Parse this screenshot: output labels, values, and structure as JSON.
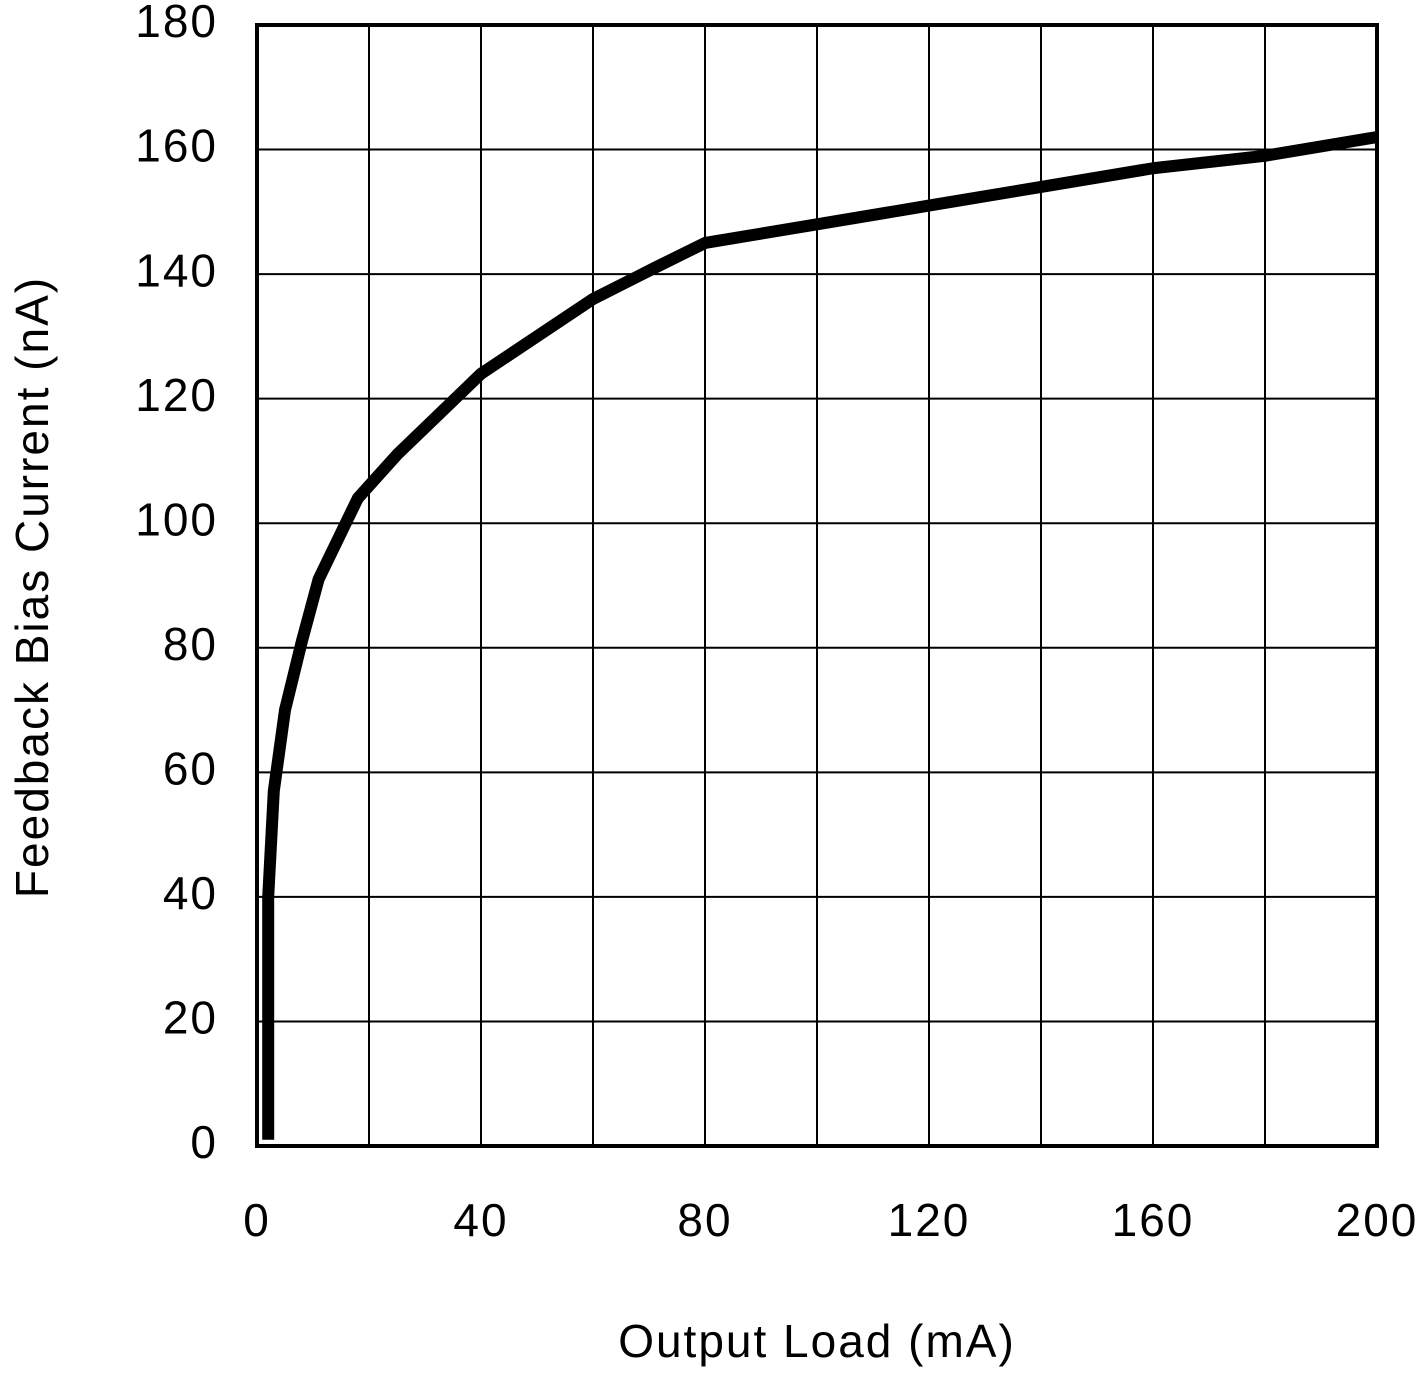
{
  "chart_data": {
    "type": "line",
    "x_label": "Output Load (mA)",
    "y_label": "Feedback Bias Current (nA)",
    "xlim": [
      0,
      200
    ],
    "ylim": [
      0,
      180
    ],
    "xticks": [
      0,
      40,
      80,
      120,
      160,
      200
    ],
    "x_minor_grid": [
      20,
      60,
      100,
      140,
      180
    ],
    "yticks": [
      0,
      20,
      40,
      60,
      80,
      100,
      120,
      140,
      160,
      180
    ],
    "grid": true,
    "series": [
      {
        "color": "#000000",
        "x": [
          2,
          2,
          3,
          5,
          8,
          11,
          18,
          25,
          40,
          60,
          71,
          80,
          100,
          120,
          140,
          160,
          180,
          200
        ],
        "values": [
          1,
          40,
          57,
          70,
          81,
          91,
          104,
          111,
          124,
          136,
          141,
          145,
          148,
          151,
          154,
          157,
          159,
          162
        ]
      }
    ]
  }
}
